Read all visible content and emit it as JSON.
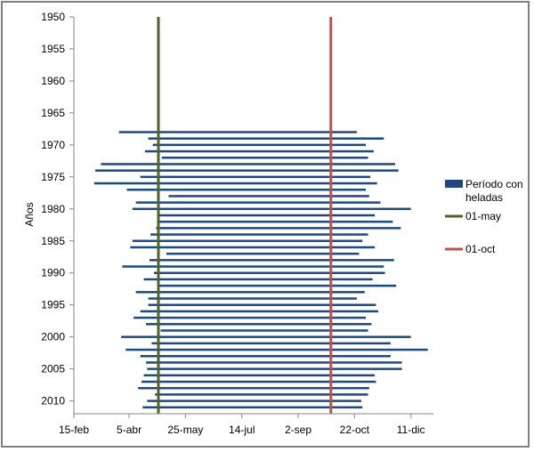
{
  "chart_data": {
    "type": "bar",
    "orientation": "horizontal-range",
    "ylabel": "Años",
    "y_axis": {
      "range": [
        1950,
        2012
      ],
      "ticks": [
        1950,
        1955,
        1960,
        1965,
        1970,
        1975,
        1980,
        1985,
        1990,
        1995,
        2000,
        2005,
        2010
      ],
      "reversed": true
    },
    "x_axis": {
      "range": [
        "15-feb",
        "31-dic"
      ],
      "ticks": [
        {
          "label": "15-feb",
          "day": 46
        },
        {
          "label": "5-abr",
          "day": 95
        },
        {
          "label": "25-may",
          "day": 145
        },
        {
          "label": "14-jul",
          "day": 195
        },
        {
          "label": "2-sep",
          "day": 245
        },
        {
          "label": "22-oct",
          "day": 295
        },
        {
          "label": "11-dic",
          "day": 345
        }
      ]
    },
    "grid": false,
    "legend_position": "right",
    "series": [
      {
        "name": "Período con heladas",
        "color": "#1F497D",
        "years": [
          1968,
          1969,
          1970,
          1971,
          1972,
          1973,
          1974,
          1975,
          1976,
          1977,
          1978,
          1979,
          1980,
          1981,
          1982,
          1983,
          1984,
          1985,
          1986,
          1987,
          1988,
          1989,
          1990,
          1991,
          1992,
          1993,
          1994,
          1995,
          1996,
          1997,
          1998,
          1999,
          2000,
          2001,
          2002,
          2003,
          2004,
          2005,
          2006,
          2007,
          2008,
          2009,
          2010,
          2011
        ],
        "start_day": [
          86,
          112,
          116,
          109,
          124,
          70,
          65,
          105,
          64,
          93,
          130,
          101,
          98,
          120,
          121,
          119,
          114,
          98,
          96,
          128,
          113,
          89,
          117,
          108,
          121,
          101,
          112,
          112,
          105,
          99,
          110,
          123,
          88,
          115,
          92,
          105,
          110,
          111,
          108,
          106,
          103,
          118,
          111,
          107
        ],
        "end_day": [
          297,
          321,
          305,
          312,
          307,
          331,
          334,
          309,
          315,
          305,
          308,
          318,
          345,
          313,
          329,
          336,
          307,
          302,
          313,
          299,
          330,
          321,
          322,
          311,
          332,
          304,
          297,
          314,
          316,
          305,
          310,
          307,
          345,
          327,
          360,
          327,
          337,
          337,
          313,
          314,
          308,
          307,
          301,
          302
        ]
      },
      {
        "name": "01-may",
        "color": "#4F6228",
        "day": 121
      },
      {
        "name": "01-oct",
        "color": "#C0504D",
        "day": 274
      }
    ],
    "legend": [
      {
        "label_lines": [
          "Período con",
          "heladas"
        ],
        "color": "#1F497D"
      },
      {
        "label_lines": [
          "01-may"
        ],
        "color": "#4F6228"
      },
      {
        "label_lines": [
          "01-oct"
        ],
        "color": "#C0504D"
      }
    ]
  }
}
